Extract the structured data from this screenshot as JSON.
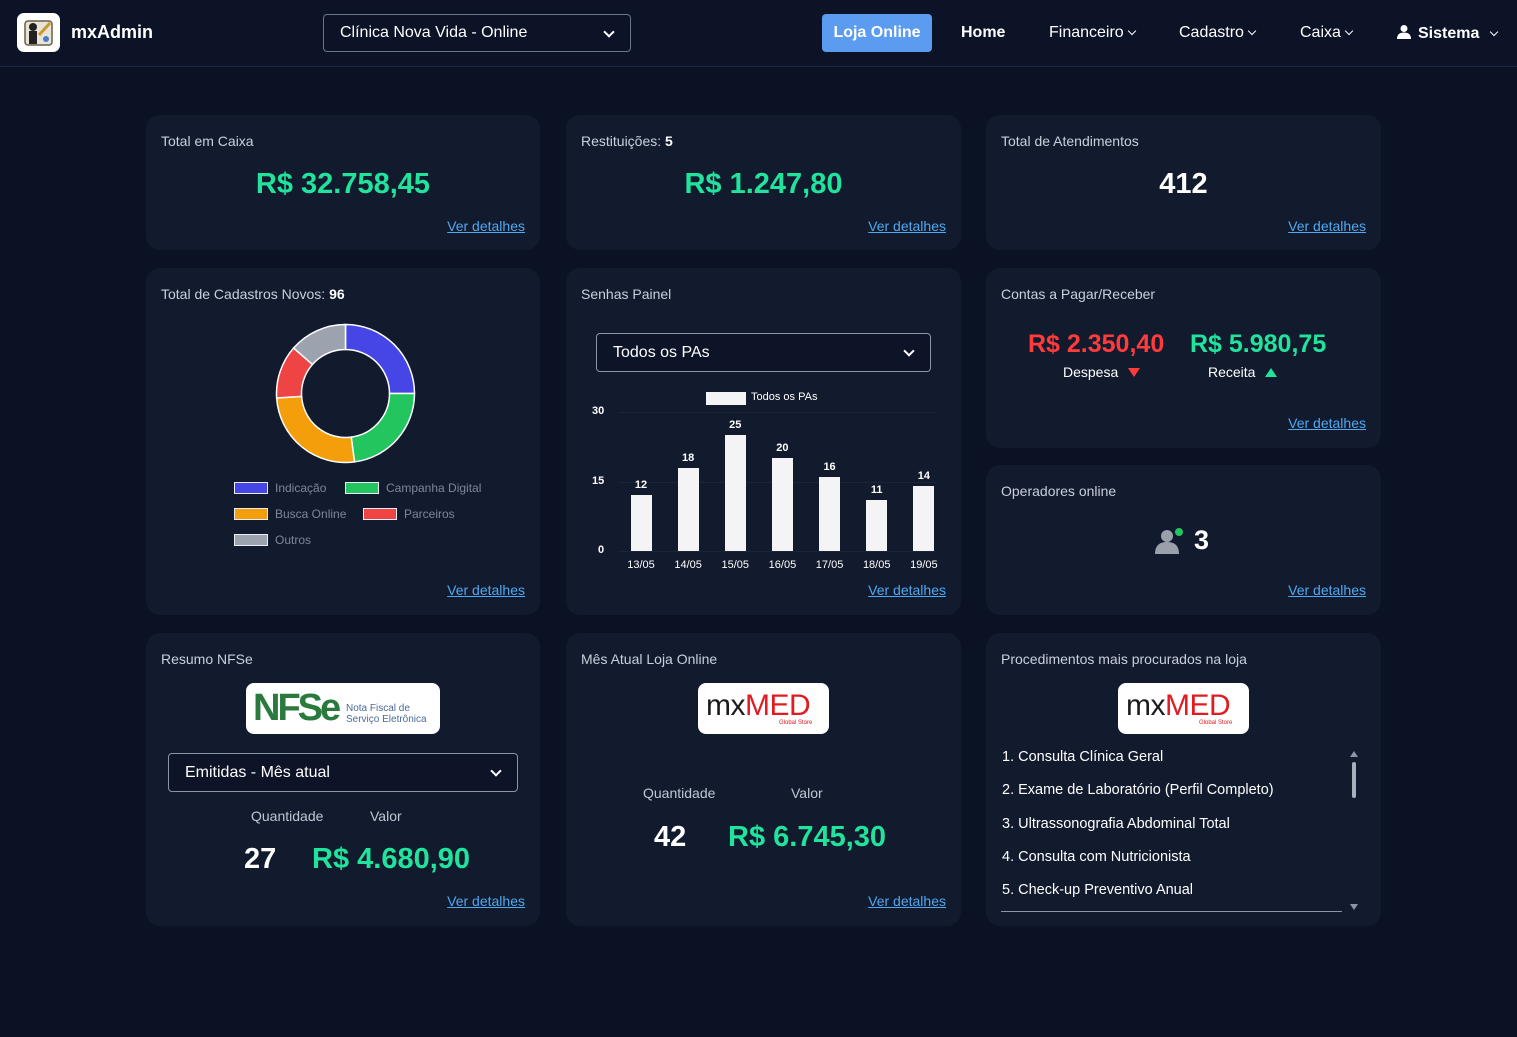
{
  "nav": {
    "brand": "mxAdmin",
    "clinic_select": "Clínica Nova Vida - Online",
    "loja_online": "Loja Online",
    "home": "Home",
    "financeiro": "Financeiro",
    "cadastro": "Cadastro",
    "caixa": "Caixa",
    "sistema": "Sistema"
  },
  "cards": {
    "total_caixa": {
      "title": "Total em Caixa",
      "value": "R$ 32.758,45",
      "link": "Ver detalhes"
    },
    "restituicoes": {
      "title": "Restituições:",
      "count": "5",
      "value": "R$ 1.247,80",
      "link": "Ver detalhes"
    },
    "atendimentos": {
      "title": "Total de Atendimentos",
      "value": "412",
      "link": "Ver detalhes"
    },
    "cadastros": {
      "title": "Total de Cadastros Novos:",
      "count": "96",
      "legend": [
        "Indicação",
        "Campanha Digital",
        "Busca Online",
        "Parceiros",
        "Outros"
      ],
      "link": "Ver detalhes"
    },
    "senhas": {
      "title": "Senhas Painel",
      "select": "Todos os PAs",
      "link": "Ver detalhes"
    },
    "contas": {
      "title": "Contas a Pagar/Receber",
      "despesa_value": "R$ 2.350,40",
      "despesa_label": "Despesa",
      "receita_value": "R$ 5.980,75",
      "receita_label": "Receita",
      "link": "Ver detalhes"
    },
    "operadores": {
      "title": "Operadores online",
      "count": "3",
      "link": "Ver detalhes"
    },
    "nfse": {
      "title": "Resumo NFSe",
      "logo_text": "NFSe",
      "logo_sub1": "Nota Fiscal de",
      "logo_sub2": "Serviço Eletrônica",
      "select": "Emitidas - Mês atual",
      "qtd_label": "Quantidade",
      "valor_label": "Valor",
      "qtd": "27",
      "valor": "R$ 4.680,90",
      "link": "Ver detalhes"
    },
    "loja_mes": {
      "title": "Mês Atual Loja Online",
      "logo_mx": "mx",
      "logo_med": "MED",
      "logo_sub": "Global Store",
      "qtd_label": "Quantidade",
      "valor_label": "Valor",
      "qtd": "42",
      "valor": "R$ 6.745,30",
      "link": "Ver detalhes"
    },
    "procedimentos": {
      "title": "Procedimentos mais procurados na loja",
      "logo_mx": "mx",
      "logo_med": "MED",
      "logo_sub": "Global Store",
      "items": [
        "1. Consulta Clínica Geral",
        "2. Exame de Laboratório (Perfil Completo)",
        "3. Ultrassonografia Abdominal Total",
        "4. Consulta com Nutricionista",
        "5. Check-up Preventivo Anual"
      ]
    }
  },
  "chart_data": [
    {
      "type": "pie",
      "title": "",
      "categories": [
        "Indicação",
        "Campanha Digital",
        "Busca Online",
        "Parceiros",
        "Outros"
      ],
      "values": [
        24,
        22,
        25,
        12,
        13
      ],
      "colors": [
        "#4646e6",
        "#22c55e",
        "#f59e0b",
        "#ef4444",
        "#9ca3af"
      ],
      "legend": "bottom"
    },
    {
      "type": "bar",
      "title": "",
      "categories": [
        "13/05",
        "14/05",
        "15/05",
        "16/05",
        "17/05",
        "18/05",
        "19/05"
      ],
      "series": [
        {
          "name": "Todos os PAs",
          "values": [
            12,
            18,
            25,
            20,
            16,
            11,
            14
          ]
        }
      ],
      "yticks": [
        "0",
        "15",
        "30"
      ],
      "ylim": [
        0,
        30
      ],
      "legend": "top"
    }
  ]
}
